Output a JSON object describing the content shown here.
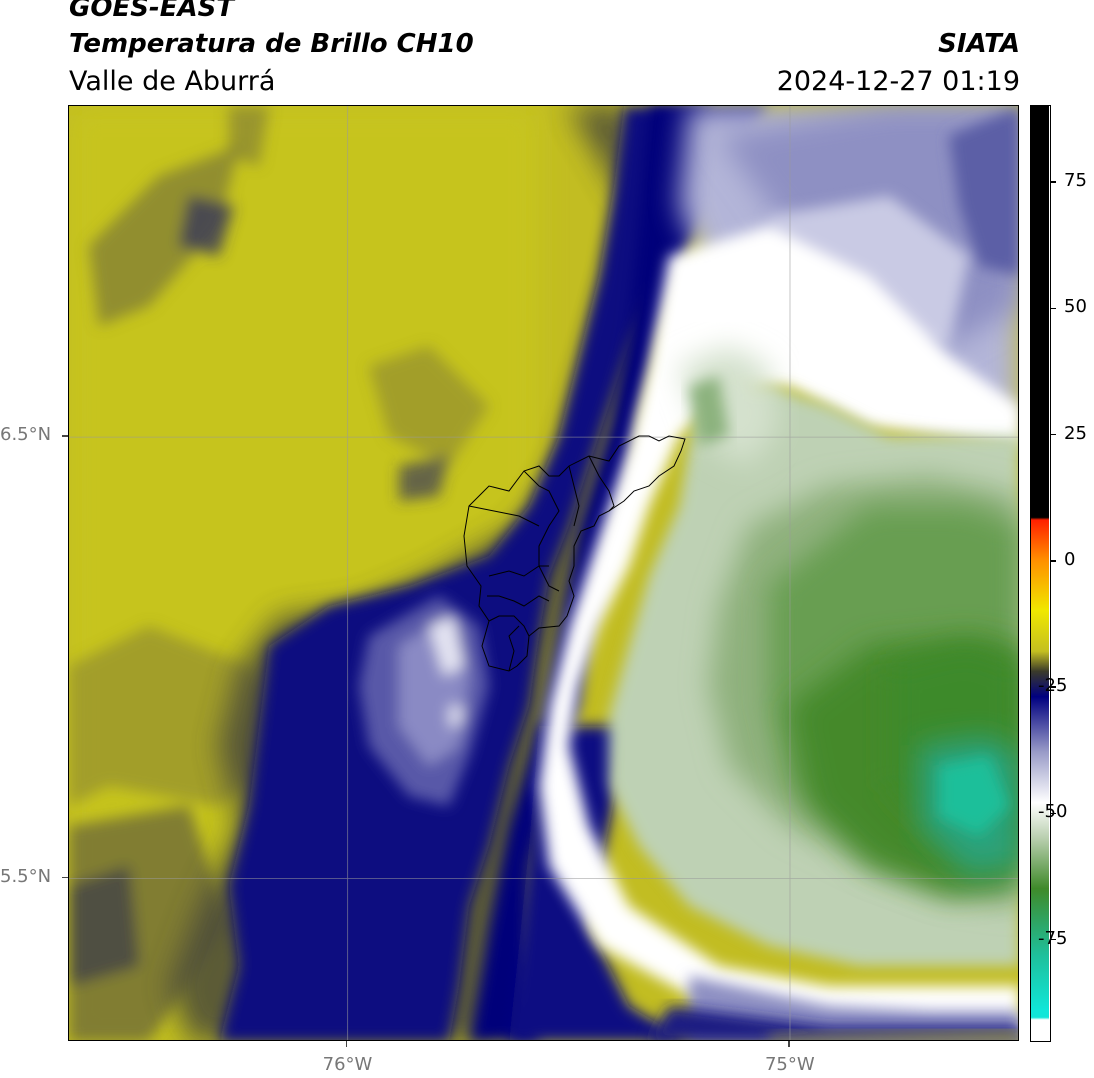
{
  "header": {
    "satellite": "GOES-EAST",
    "product": "Temperatura de Brillo CH10",
    "region": "Valle de Aburrá",
    "agency": "SIATA",
    "datetime": "2024-12-27 01:19"
  },
  "axes": {
    "lat_labels": [
      "6.5°N",
      "5.5°N"
    ],
    "lon_labels": [
      "76°W",
      "75°W"
    ]
  },
  "colorbar": {
    "ticks": [
      "75",
      "50",
      "25",
      "0",
      "-25",
      "-50",
      "-75"
    ],
    "tick_values": [
      75,
      50,
      25,
      0,
      -25,
      -50,
      -75
    ],
    "range": [
      -95,
      90
    ],
    "colors": {
      "warm": "#000000",
      "hot": "#ff2000",
      "orange": "#ff9000",
      "yellow": "#f0e800",
      "olive": "#c4bf20",
      "dark_olive": "#3a3a2a",
      "navy": "#000080",
      "lavender": "#9a9cc8",
      "white": "#ffffff",
      "light_green": "#b9cfaf",
      "green": "#3f8a2a",
      "teal": "#1fbf9a",
      "cyan": "#10e6d8"
    }
  },
  "map": {
    "lat_range": [
      5.13,
      7.25
    ],
    "lon_range": [
      -76.63,
      -74.48
    ],
    "lat_gridlines": [
      6.5,
      5.5
    ],
    "lon_gridlines": [
      -76,
      -75
    ]
  }
}
